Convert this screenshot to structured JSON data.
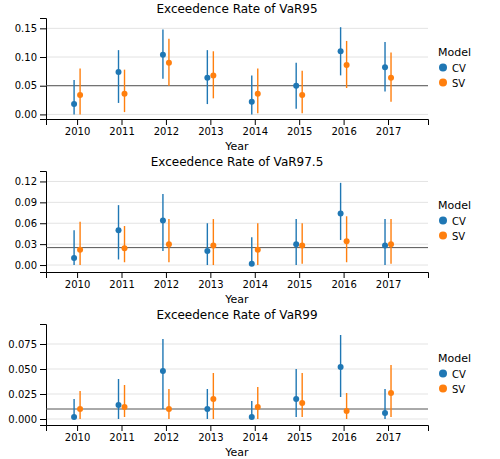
{
  "chart_data": [
    {
      "type": "errorbar",
      "title": "Exceedence Rate of VaR95",
      "x_label": "Year",
      "x": [
        2010,
        2011,
        2012,
        2013,
        2014,
        2015,
        2016,
        2017
      ],
      "xlim": [
        2009.3,
        2017.9
      ],
      "xticks": [
        2010,
        2011,
        2012,
        2013,
        2014,
        2015,
        2016,
        2017
      ],
      "ylim": [
        -0.008,
        0.168
      ],
      "yticks": [
        {
          "value": 0.0,
          "label": "0.00"
        },
        {
          "value": 0.05,
          "label": "0.05"
        },
        {
          "value": 0.1,
          "label": "0.10"
        },
        {
          "value": 0.15,
          "label": "0.15"
        }
      ],
      "reference_line": {
        "value": 0.05
      },
      "grid": true,
      "legend": "right",
      "legend_title": "Model",
      "series": [
        {
          "name": "CV",
          "values": [
            0.018,
            0.074,
            0.104,
            0.064,
            0.022,
            0.05,
            0.11,
            0.082
          ],
          "lower": [
            0.0,
            0.02,
            0.062,
            0.018,
            0.0,
            0.01,
            0.068,
            0.04
          ],
          "upper": [
            0.06,
            0.112,
            0.148,
            0.112,
            0.068,
            0.09,
            0.152,
            0.126
          ]
        },
        {
          "name": "SV",
          "values": [
            0.034,
            0.036,
            0.09,
            0.068,
            0.036,
            0.034,
            0.086,
            0.064
          ],
          "lower": [
            0.0,
            0.004,
            0.05,
            0.028,
            0.002,
            0.002,
            0.046,
            0.022
          ],
          "upper": [
            0.08,
            0.078,
            0.132,
            0.11,
            0.08,
            0.076,
            0.128,
            0.108
          ]
        }
      ]
    },
    {
      "type": "errorbar",
      "title": "Exceedence Rate of VaR97.5",
      "x_label": "Year",
      "x": [
        2010,
        2011,
        2012,
        2013,
        2014,
        2015,
        2016,
        2017
      ],
      "xlim": [
        2009.3,
        2017.9
      ],
      "xticks": [
        2010,
        2011,
        2012,
        2013,
        2014,
        2015,
        2016,
        2017
      ],
      "ylim": [
        -0.01,
        0.135
      ],
      "yticks": [
        {
          "value": 0.0,
          "label": "0.00"
        },
        {
          "value": 0.03,
          "label": "0.03"
        },
        {
          "value": 0.06,
          "label": "0.06"
        },
        {
          "value": 0.09,
          "label": "0.09"
        },
        {
          "value": 0.12,
          "label": "0.12"
        }
      ],
      "reference_line": {
        "value": 0.025
      },
      "grid": true,
      "legend": "right",
      "legend_title": "Model",
      "series": [
        {
          "name": "CV",
          "values": [
            0.01,
            0.05,
            0.064,
            0.02,
            0.002,
            0.03,
            0.074,
            0.028
          ],
          "lower": [
            0.0,
            0.008,
            0.02,
            0.0,
            0.0,
            0.0,
            0.036,
            0.0
          ],
          "upper": [
            0.05,
            0.086,
            0.102,
            0.06,
            0.04,
            0.066,
            0.118,
            0.066
          ]
        },
        {
          "name": "SV",
          "values": [
            0.022,
            0.024,
            0.03,
            0.028,
            0.022,
            0.028,
            0.034,
            0.03
          ],
          "lower": [
            0.0,
            0.004,
            0.004,
            0.0,
            0.0,
            0.002,
            0.004,
            0.002
          ],
          "upper": [
            0.062,
            0.056,
            0.066,
            0.066,
            0.06,
            0.06,
            0.07,
            0.066
          ]
        }
      ]
    },
    {
      "type": "errorbar",
      "title": "Exceedence Rate of VaR99",
      "x_label": "Year",
      "x": [
        2010,
        2011,
        2012,
        2013,
        2014,
        2015,
        2016,
        2017
      ],
      "xlim": [
        2009.3,
        2017.9
      ],
      "xticks": [
        2010,
        2011,
        2012,
        2013,
        2014,
        2015,
        2016,
        2017
      ],
      "ylim": [
        -0.006,
        0.095
      ],
      "yticks": [
        {
          "value": 0.0,
          "label": "0.000"
        },
        {
          "value": 0.025,
          "label": "0.025"
        },
        {
          "value": 0.05,
          "label": "0.050"
        },
        {
          "value": 0.075,
          "label": "0.075"
        }
      ],
      "reference_line": {
        "value": 0.01
      },
      "grid": true,
      "legend": "right",
      "legend_title": "Model",
      "series": [
        {
          "name": "CV",
          "values": [
            0.002,
            0.014,
            0.048,
            0.01,
            0.002,
            0.02,
            0.052,
            0.006
          ],
          "lower": [
            0.0,
            0.0,
            0.01,
            0.0,
            0.0,
            0.002,
            0.022,
            0.0
          ],
          "upper": [
            0.02,
            0.04,
            0.08,
            0.03,
            0.018,
            0.05,
            0.084,
            0.03
          ]
        },
        {
          "name": "SV",
          "values": [
            0.01,
            0.012,
            0.01,
            0.02,
            0.012,
            0.016,
            0.008,
            0.026
          ],
          "lower": [
            0.0,
            0.002,
            0.0,
            0.0,
            0.0,
            0.002,
            0.0,
            0.002
          ],
          "upper": [
            0.028,
            0.034,
            0.03,
            0.046,
            0.032,
            0.046,
            0.026,
            0.054
          ]
        }
      ]
    }
  ]
}
